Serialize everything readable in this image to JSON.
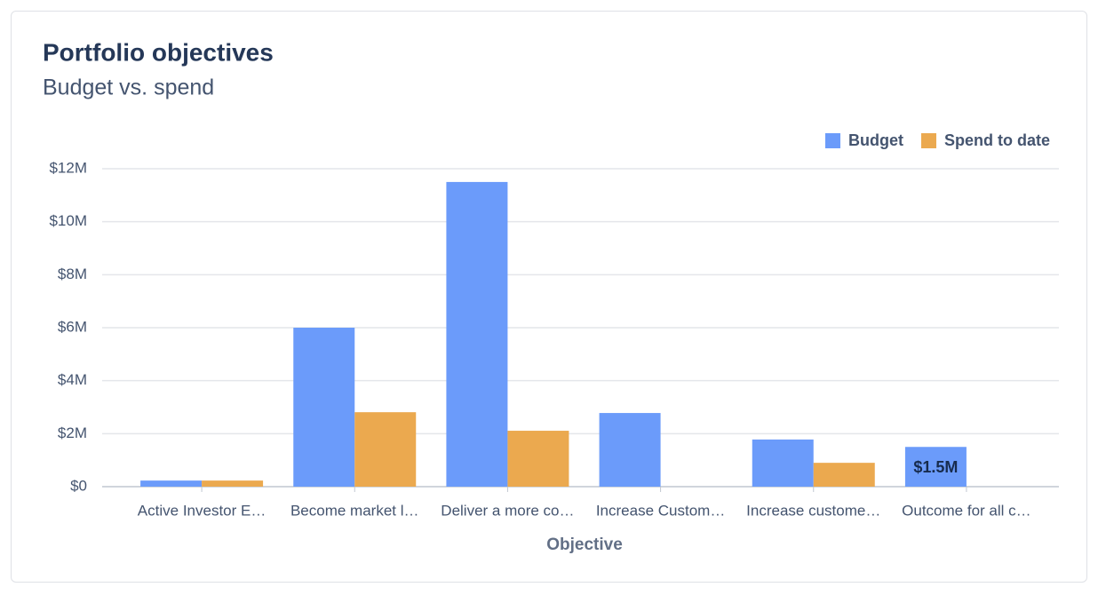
{
  "chart_data": {
    "type": "bar",
    "title": "Portfolio objectives",
    "subtitle": "Budget vs. spend",
    "x_label": "Objective",
    "categories": [
      "Active Investor E…",
      "Become market l…",
      "Deliver a more co…",
      "Increase Custom…",
      "Increase custome…",
      "Outcome for all c…"
    ],
    "series": [
      {
        "name": "Budget",
        "color": "#6b9bfa",
        "values": [
          230000,
          6000000,
          11500000,
          2780000,
          1780000,
          1500000
        ],
        "value_labels": [
          null,
          null,
          null,
          null,
          null,
          "$1.5M"
        ]
      },
      {
        "name": "Spend to date",
        "color": "#eba94f",
        "values": [
          230000,
          2810000,
          2110000,
          0,
          900000,
          0
        ]
      }
    ],
    "ylim": [
      0,
      12000000
    ],
    "yticks": [
      {
        "value": 0,
        "label": "$0"
      },
      {
        "value": 2000000,
        "label": "$2M"
      },
      {
        "value": 4000000,
        "label": "$4M"
      },
      {
        "value": 6000000,
        "label": "$6M"
      },
      {
        "value": 8000000,
        "label": "$8M"
      },
      {
        "value": 10000000,
        "label": "$10M"
      },
      {
        "value": 12000000,
        "label": "$12M"
      }
    ],
    "grid": true,
    "legend": "top-right"
  }
}
